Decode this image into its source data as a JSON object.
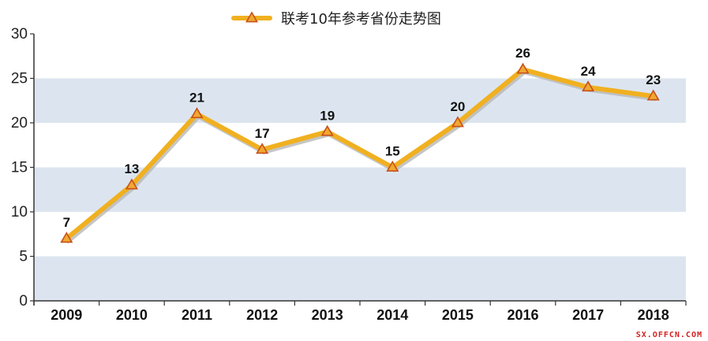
{
  "chart_data": {
    "type": "line",
    "title": "",
    "xlabel": "",
    "ylabel": "",
    "categories": [
      "2009",
      "2010",
      "2011",
      "2012",
      "2013",
      "2014",
      "2015",
      "2016",
      "2017",
      "2018"
    ],
    "series": [
      {
        "name": "联考10年参考省份走势图",
        "values": [
          7,
          13,
          21,
          17,
          19,
          15,
          20,
          26,
          24,
          23
        ],
        "color": "#f0b020",
        "marker": "triangle"
      }
    ],
    "ylim": [
      0,
      30
    ],
    "yticks": [
      0,
      5,
      10,
      15,
      20,
      25,
      30
    ],
    "grid": "alternating horizontal bands",
    "band_color": "#dce5ef",
    "legend_position": "top-center",
    "data_labels": true
  },
  "watermark": "SX.OFFCN.COM"
}
